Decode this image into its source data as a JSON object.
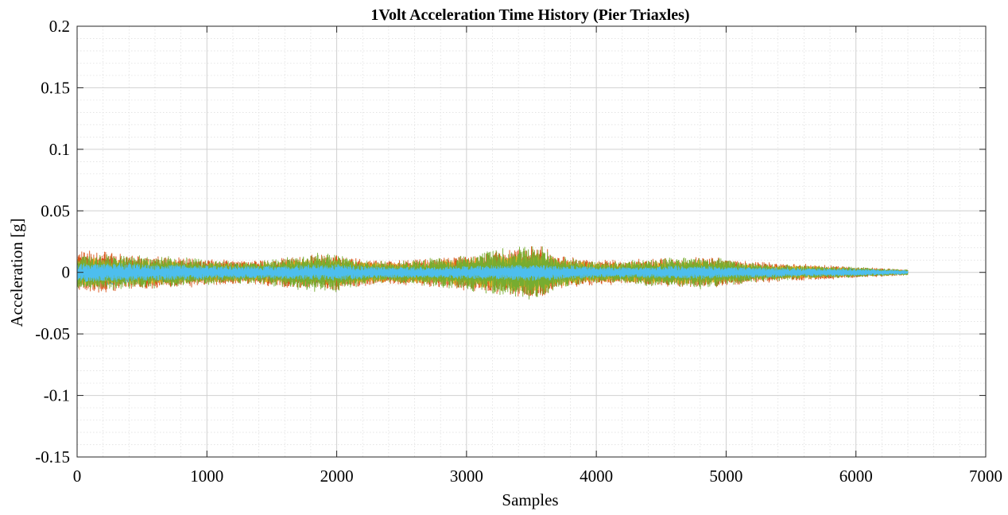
{
  "chart_data": {
    "type": "line",
    "title": "1Volt Acceleration Time History (Pier Triaxles)",
    "xlabel": "Samples",
    "ylabel": "Acceleration [g]",
    "xlim": [
      0,
      7000
    ],
    "ylim": [
      -0.15,
      0.2
    ],
    "xticks": [
      0,
      1000,
      2000,
      3000,
      4000,
      5000,
      6000,
      7000
    ],
    "xtick_labels": [
      "0",
      "1000",
      "2000",
      "3000",
      "4000",
      "5000",
      "6000",
      "7000"
    ],
    "yticks": [
      -0.15,
      -0.1,
      -0.05,
      0,
      0.05,
      0.1,
      0.15,
      0.2
    ],
    "ytick_labels": [
      "-0.15",
      "-0.1",
      "-0.05",
      "0",
      "0.05",
      "0.1",
      "0.15",
      "0.2"
    ],
    "grid": true,
    "minor_grid": true,
    "legend": "none",
    "series": [
      {
        "color": "#0072BD",
        "sample_count": 6400,
        "envelope": {
          "x": [
            0,
            200,
            400,
            600,
            800,
            1000,
            1200,
            1400,
            1600,
            1800,
            2000,
            2200,
            2400,
            2600,
            2800,
            3000,
            3200,
            3400,
            3500,
            3600,
            3700,
            3800,
            4000,
            4200,
            4400,
            4600,
            4800,
            5000,
            5200,
            5400,
            5600,
            5800,
            6000,
            6200,
            6400
          ],
          "amplitude": [
            0.009,
            0.009,
            0.008,
            0.008,
            0.007,
            0.006,
            0.006,
            0.006,
            0.007,
            0.008,
            0.008,
            0.006,
            0.005,
            0.005,
            0.005,
            0.006,
            0.007,
            0.009,
            0.01,
            0.009,
            0.007,
            0.006,
            0.005,
            0.005,
            0.005,
            0.006,
            0.006,
            0.005,
            0.004,
            0.004,
            0.004,
            0.003,
            0.003,
            0.002,
            0.0015
          ]
        }
      },
      {
        "color": "#D95319",
        "sample_count": 6400,
        "envelope": {
          "x": [
            0,
            200,
            400,
            600,
            800,
            1000,
            1200,
            1400,
            1600,
            1800,
            2000,
            2200,
            2400,
            2600,
            2800,
            3000,
            3200,
            3400,
            3500,
            3600,
            3700,
            3800,
            4000,
            4200,
            4400,
            4600,
            4800,
            5000,
            5200,
            5400,
            5600,
            5800,
            6000,
            6200,
            6400
          ],
          "amplitude": [
            0.016,
            0.015,
            0.013,
            0.012,
            0.011,
            0.01,
            0.009,
            0.009,
            0.011,
            0.013,
            0.013,
            0.01,
            0.009,
            0.01,
            0.011,
            0.013,
            0.015,
            0.018,
            0.02,
            0.018,
            0.013,
            0.011,
            0.009,
            0.009,
            0.01,
            0.011,
            0.012,
            0.01,
            0.008,
            0.007,
            0.006,
            0.005,
            0.004,
            0.003,
            0.002
          ]
        }
      },
      {
        "color": "#EDB120",
        "sample_count": 6400,
        "envelope": {
          "x": [
            0,
            200,
            400,
            600,
            800,
            1000,
            1200,
            1400,
            1600,
            1800,
            2000,
            2200,
            2400,
            2600,
            2800,
            3000,
            3200,
            3400,
            3500,
            3600,
            3700,
            3800,
            4000,
            4200,
            4400,
            4600,
            4800,
            5000,
            5200,
            5400,
            5600,
            5800,
            6000,
            6200,
            6400
          ],
          "amplitude": [
            0.011,
            0.01,
            0.009,
            0.009,
            0.008,
            0.007,
            0.007,
            0.007,
            0.008,
            0.01,
            0.01,
            0.008,
            0.007,
            0.008,
            0.009,
            0.01,
            0.012,
            0.015,
            0.016,
            0.015,
            0.011,
            0.009,
            0.007,
            0.007,
            0.008,
            0.009,
            0.009,
            0.008,
            0.006,
            0.005,
            0.005,
            0.004,
            0.003,
            0.0025,
            0.0015
          ]
        }
      },
      {
        "color": "#77AC30",
        "sample_count": 6400,
        "envelope": {
          "x": [
            0,
            200,
            400,
            600,
            800,
            1000,
            1200,
            1400,
            1600,
            1800,
            2000,
            2200,
            2400,
            2600,
            2800,
            3000,
            3200,
            3400,
            3500,
            3600,
            3700,
            3800,
            4000,
            4200,
            4400,
            4600,
            4800,
            5000,
            5200,
            5400,
            5600,
            5800,
            6000,
            6200,
            6400
          ],
          "amplitude": [
            0.013,
            0.013,
            0.012,
            0.012,
            0.011,
            0.009,
            0.008,
            0.009,
            0.011,
            0.014,
            0.014,
            0.009,
            0.008,
            0.009,
            0.011,
            0.013,
            0.016,
            0.019,
            0.021,
            0.019,
            0.012,
            0.01,
            0.008,
            0.008,
            0.01,
            0.011,
            0.012,
            0.01,
            0.007,
            0.006,
            0.005,
            0.004,
            0.004,
            0.003,
            0.002
          ]
        }
      },
      {
        "color": "#4DBEEE",
        "sample_count": 6400,
        "envelope": {
          "x": [
            0,
            200,
            400,
            600,
            800,
            1000,
            1200,
            1400,
            1600,
            1800,
            2000,
            2200,
            2400,
            2600,
            2800,
            3000,
            3200,
            3400,
            3500,
            3600,
            3700,
            3800,
            4000,
            4200,
            4400,
            4600,
            4800,
            5000,
            5200,
            5400,
            5600,
            5800,
            6000,
            6200,
            6400
          ],
          "amplitude": [
            0.007,
            0.007,
            0.007,
            0.006,
            0.006,
            0.005,
            0.005,
            0.005,
            0.005,
            0.006,
            0.006,
            0.005,
            0.004,
            0.004,
            0.004,
            0.005,
            0.005,
            0.006,
            0.006,
            0.006,
            0.005,
            0.005,
            0.004,
            0.004,
            0.004,
            0.005,
            0.005,
            0.004,
            0.004,
            0.0035,
            0.003,
            0.003,
            0.0025,
            0.002,
            0.0015
          ]
        }
      }
    ]
  }
}
